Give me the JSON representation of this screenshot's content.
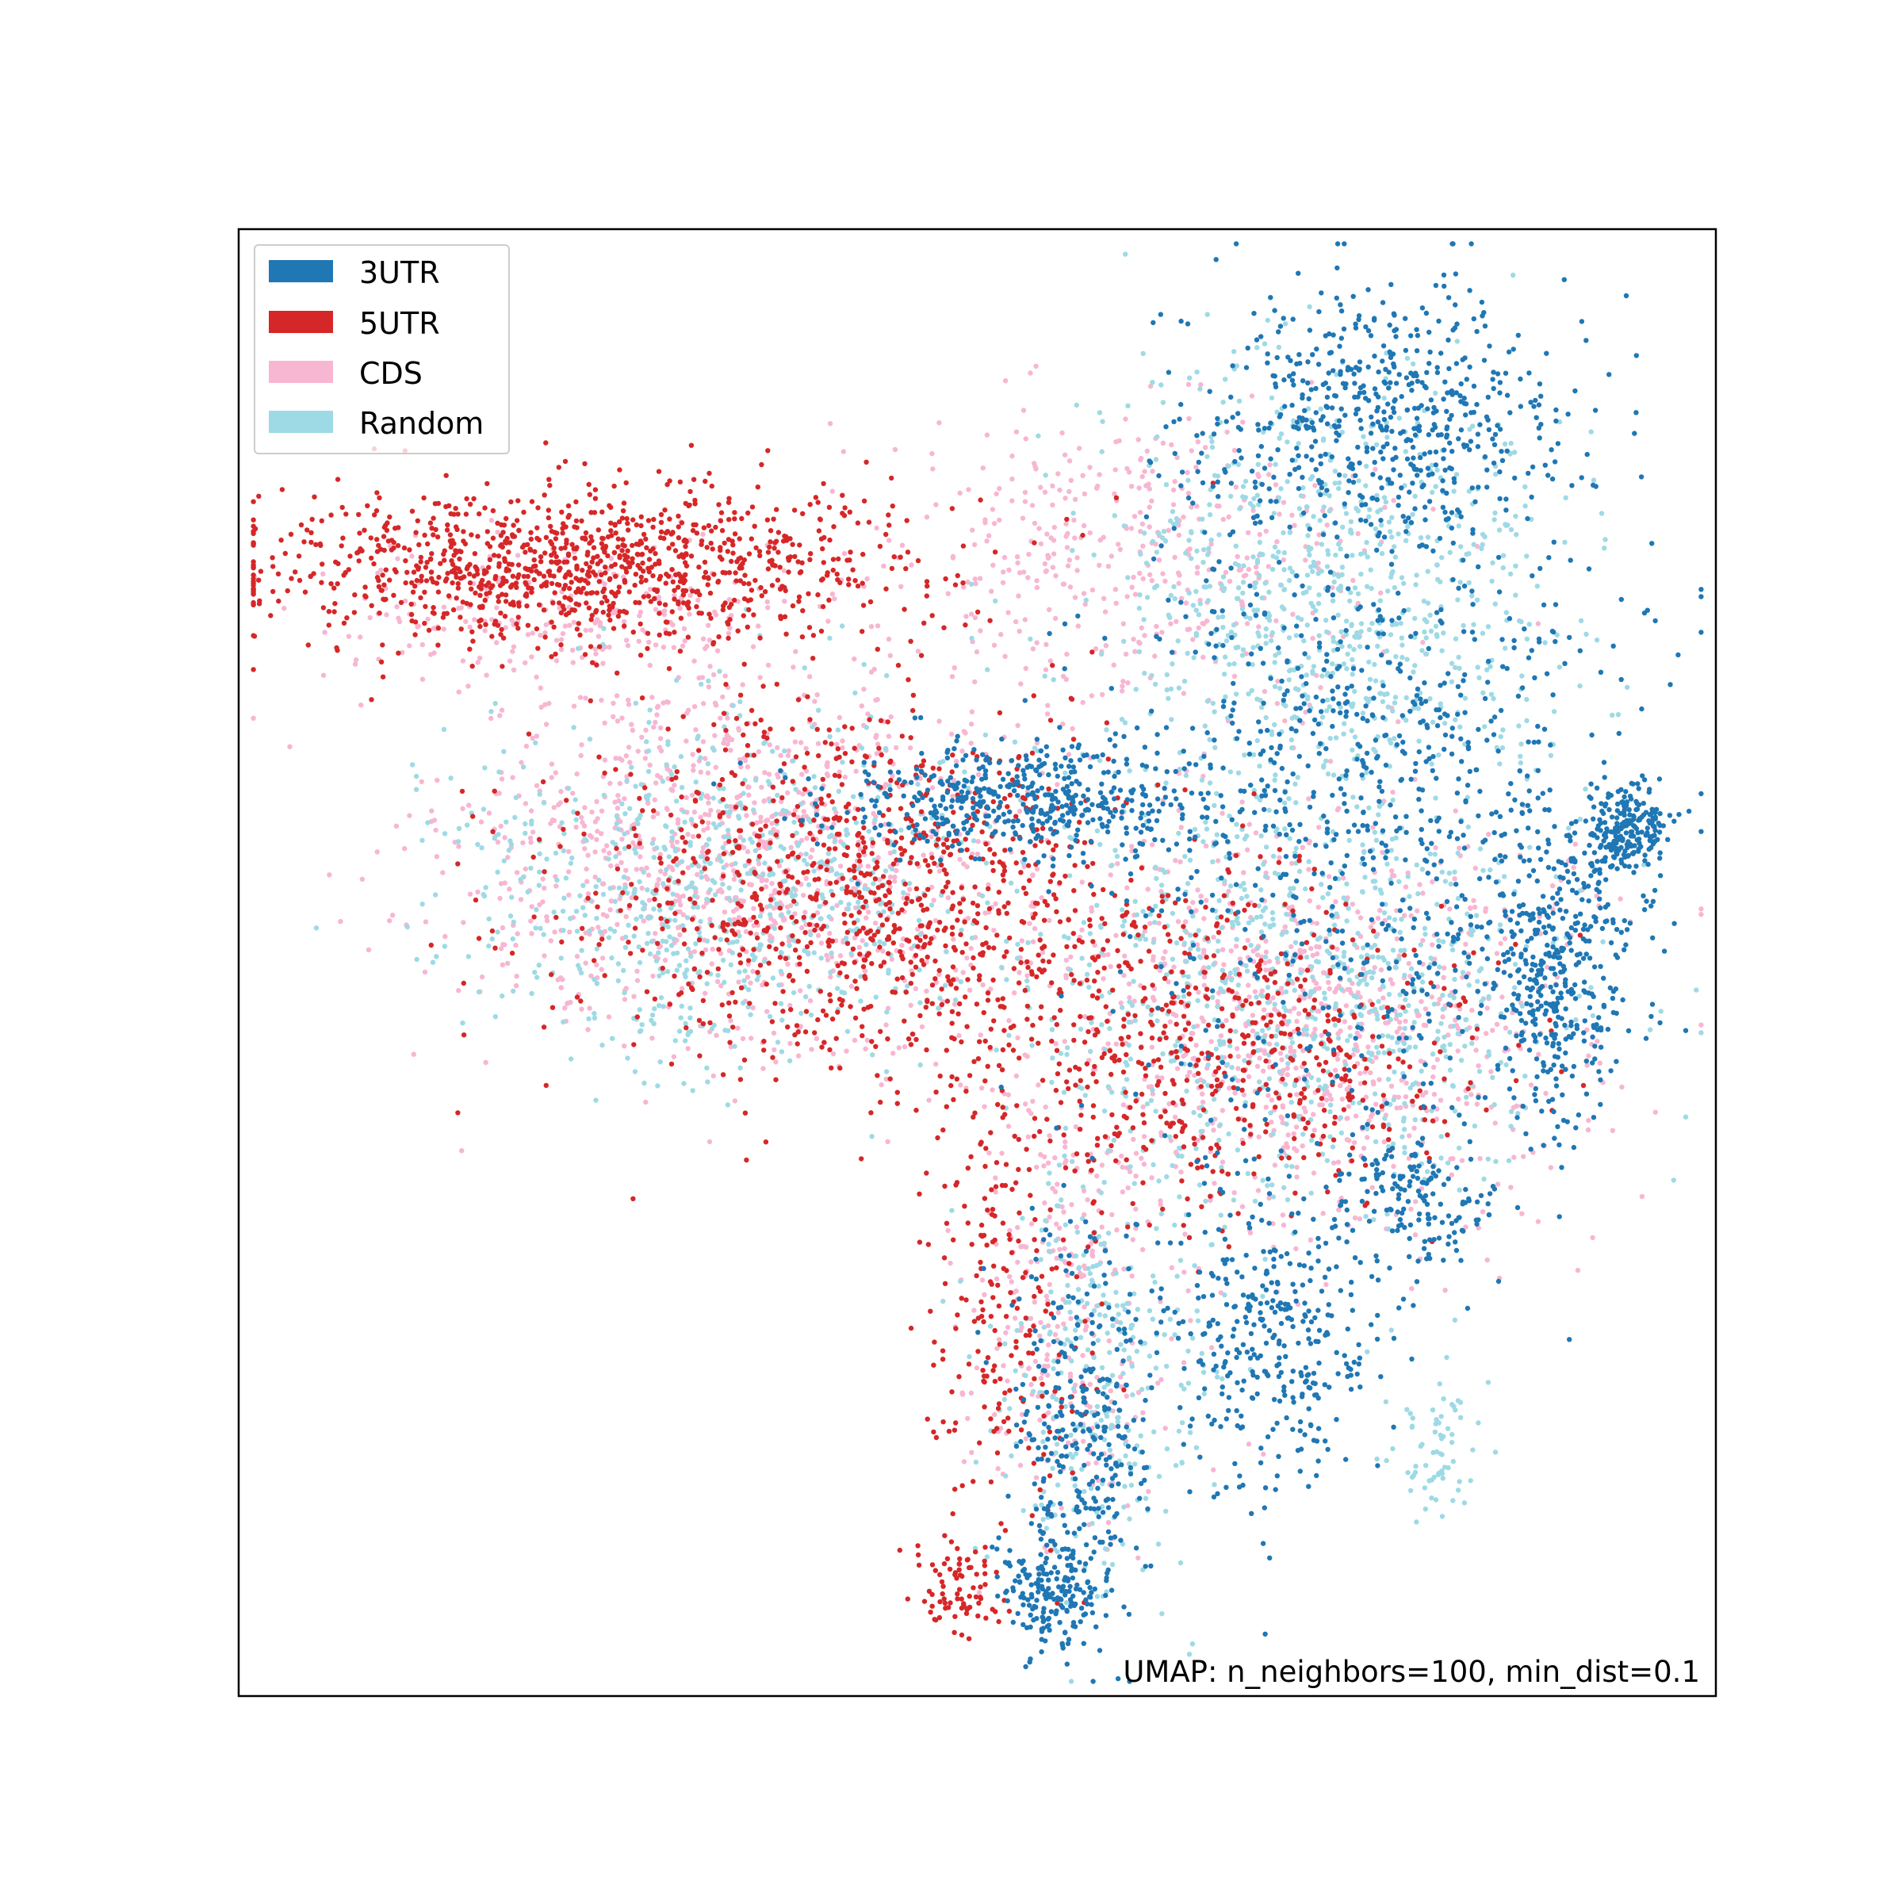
{
  "chart_data": {
    "type": "scatter",
    "title": "",
    "xlabel": "",
    "ylabel": "",
    "xlim": [
      0,
      100
    ],
    "ylim": [
      0,
      100
    ],
    "x_ticks": [],
    "y_ticks": [],
    "grid": false,
    "legend_placement": "top-left",
    "annotation": "UMAP: n_neighbors=100, min_dist=0.1",
    "series": [
      {
        "name": "3UTR",
        "color": "#1f77b4",
        "regions": [
          {
            "cx": 77,
            "cy": 88,
            "rx": 10,
            "ry": 7,
            "n": 520,
            "w": 1
          },
          {
            "cx": 53,
            "cy": 61,
            "rx": 11,
            "ry": 3,
            "n": 480,
            "w": 1
          },
          {
            "cx": 94,
            "cy": 59,
            "rx": 2.2,
            "ry": 2.5,
            "n": 220,
            "w": 1
          },
          {
            "cx": 89,
            "cy": 50,
            "rx": 4,
            "ry": 9,
            "n": 380,
            "w": 1
          },
          {
            "cx": 57,
            "cy": 18,
            "rx": 4,
            "ry": 12,
            "n": 330,
            "w": 1
          },
          {
            "cx": 55,
            "cy": 7,
            "rx": 2.6,
            "ry": 3.2,
            "n": 160,
            "w": 1
          },
          {
            "cx": 70,
            "cy": 25,
            "rx": 7,
            "ry": 9,
            "n": 360,
            "w": 1
          },
          {
            "cx": 80,
            "cy": 34,
            "rx": 4,
            "ry": 4,
            "n": 150,
            "w": 1
          },
          {
            "cx": 77,
            "cy": 62,
            "rx": 15,
            "ry": 20,
            "n": 900,
            "w": 1
          }
        ]
      },
      {
        "name": "5UTR",
        "color": "#d62728",
        "regions": [
          {
            "cx": 22,
            "cy": 77,
            "rx": 19,
            "ry": 4.5,
            "n": 1100,
            "w": 1
          },
          {
            "cx": 42,
            "cy": 55,
            "rx": 16,
            "ry": 10,
            "n": 950,
            "w": 1
          },
          {
            "cx": 65,
            "cy": 44,
            "rx": 16,
            "ry": 9,
            "n": 620,
            "w": 1
          },
          {
            "cx": 52,
            "cy": 25,
            "rx": 5,
            "ry": 12,
            "n": 190,
            "w": 1
          },
          {
            "cx": 49,
            "cy": 7,
            "rx": 2.5,
            "ry": 2.5,
            "n": 80,
            "w": 1
          }
        ]
      },
      {
        "name": "CDS",
        "color": "#f7b6d2",
        "regions": [
          {
            "cx": 34,
            "cy": 57,
            "rx": 16,
            "ry": 11,
            "n": 1050,
            "w": 1
          },
          {
            "cx": 60,
            "cy": 78,
            "rx": 14,
            "ry": 9,
            "n": 420,
            "w": 1
          },
          {
            "cx": 72,
            "cy": 46,
            "rx": 16,
            "ry": 12,
            "n": 900,
            "w": 1
          },
          {
            "cx": 56,
            "cy": 25,
            "rx": 6,
            "ry": 12,
            "n": 260,
            "w": 1
          },
          {
            "cx": 22,
            "cy": 74,
            "rx": 13,
            "ry": 4,
            "n": 220,
            "w": 1
          }
        ]
      },
      {
        "name": "Random",
        "color": "#9edae5",
        "regions": [
          {
            "cx": 33,
            "cy": 55,
            "rx": 15,
            "ry": 10,
            "n": 760,
            "w": 1
          },
          {
            "cx": 74,
            "cy": 75,
            "rx": 13,
            "ry": 13,
            "n": 820,
            "w": 1
          },
          {
            "cx": 72,
            "cy": 48,
            "rx": 15,
            "ry": 12,
            "n": 800,
            "w": 1
          },
          {
            "cx": 58,
            "cy": 22,
            "rx": 6,
            "ry": 13,
            "n": 300,
            "w": 1
          },
          {
            "cx": 81,
            "cy": 17,
            "rx": 2.5,
            "ry": 4,
            "n": 70,
            "w": 1
          }
        ]
      }
    ],
    "draw_order": [
      "CDS",
      "Random",
      "5UTR",
      "3UTR"
    ]
  }
}
